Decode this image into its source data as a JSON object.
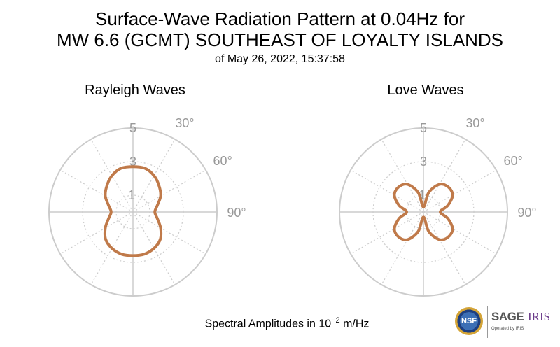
{
  "title": {
    "line1": "Surface-Wave Radiation Pattern at 0.04Hz for",
    "line2": "MW 6.6 (GCMT) SOUTHEAST OF LOYALTY ISLANDS",
    "line3": "of May 26, 2022, 15:37:58"
  },
  "footer": {
    "prefix": "Spectral Amplitudes in ",
    "base": "10",
    "exponent": "−2",
    "unit": " m/Hz"
  },
  "logos": {
    "nsf": "NSF",
    "sage": "SAGE",
    "iris": "IRIS",
    "operated": "Operated by IRIS"
  },
  "chart_data": [
    {
      "type": "polar",
      "title": "Rayleigh Waves",
      "r_ticks": [
        "1",
        "3",
        "5"
      ],
      "r_max": 5,
      "angle_ticks": [
        "30°",
        "60°",
        "90°"
      ],
      "line_color": "#c07a4a",
      "grid_color": "#cccccc",
      "series": [
        {
          "theta_deg": [
            0,
            15,
            30,
            45,
            60,
            75,
            90,
            105,
            120,
            135,
            150,
            165,
            180,
            195,
            210,
            225,
            240,
            255,
            270,
            285,
            300,
            315,
            330,
            345
          ],
          "r": [
            2.7,
            2.7,
            2.5,
            2.2,
            1.9,
            1.5,
            1.3,
            1.5,
            1.9,
            2.3,
            2.5,
            2.6,
            2.6,
            2.6,
            2.5,
            2.3,
            1.9,
            1.5,
            1.3,
            1.5,
            1.9,
            2.2,
            2.5,
            2.7
          ]
        }
      ]
    },
    {
      "type": "polar",
      "title": "Love Waves",
      "r_ticks": [
        "1",
        "3",
        "5"
      ],
      "r_max": 5,
      "angle_ticks": [
        "30°",
        "60°",
        "90°"
      ],
      "line_color": "#c07a4a",
      "grid_color": "#cccccc",
      "series": [
        {
          "theta_deg": [
            0,
            15,
            30,
            45,
            60,
            75,
            90,
            105,
            120,
            135,
            150,
            165,
            180,
            195,
            210,
            225,
            240,
            255,
            270,
            285,
            300,
            315,
            330,
            345
          ],
          "r": [
            0.3,
            1.2,
            1.9,
            2.1,
            2.0,
            1.5,
            1.0,
            1.5,
            2.0,
            2.1,
            1.9,
            1.2,
            0.3,
            1.2,
            1.9,
            2.1,
            2.0,
            1.5,
            1.0,
            1.5,
            2.0,
            2.1,
            1.9,
            1.2
          ]
        }
      ]
    }
  ]
}
